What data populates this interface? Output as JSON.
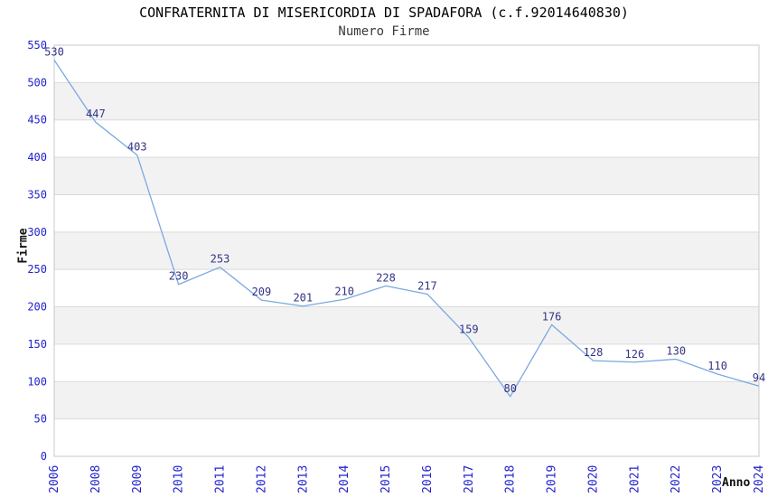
{
  "chart_data": {
    "type": "line",
    "title": "CONFRATERNITA DI MISERICORDIA DI SPADAFORA (c.f.92014640830)",
    "subtitle": "Numero Firme",
    "xlabel": "Anno",
    "ylabel": "Firme",
    "categories": [
      "2006",
      "2008",
      "2009",
      "2010",
      "2011",
      "2012",
      "2013",
      "2014",
      "2015",
      "2016",
      "2017",
      "2018",
      "2019",
      "2020",
      "2021",
      "2022",
      "2023",
      "2024"
    ],
    "values": [
      530,
      447,
      403,
      230,
      253,
      209,
      201,
      210,
      228,
      217,
      159,
      80,
      176,
      128,
      126,
      130,
      110,
      94
    ],
    "ylim": [
      0,
      550
    ],
    "ytick_step": 50,
    "yticks": [
      0,
      50,
      100,
      150,
      200,
      250,
      300,
      350,
      400,
      450,
      500,
      550
    ],
    "grid": true,
    "legend": "none",
    "bands_alternating": true,
    "colors": {
      "line": "#7aa9e0",
      "tick_label": "#2222cc",
      "value_label": "#333388",
      "band": "#f2f2f2",
      "band_alt": "#ffffff",
      "gridline": "#dadada",
      "border": "#c8c8c8",
      "background": "#ffffff",
      "title": "#000000",
      "subtitle": "#3a3a3a",
      "axis_label": "#111111"
    }
  }
}
